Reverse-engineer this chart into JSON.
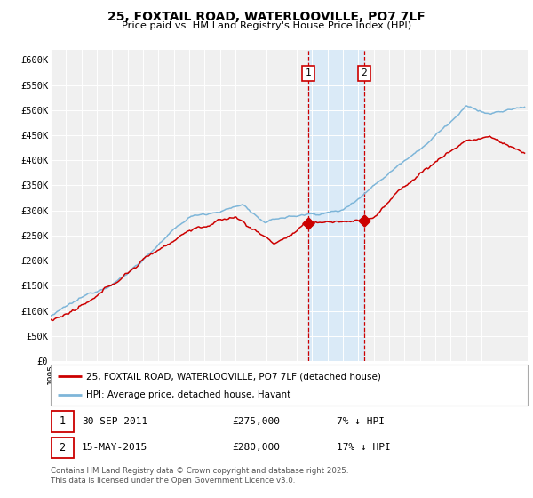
{
  "title": "25, FOXTAIL ROAD, WATERLOOVILLE, PO7 7LF",
  "subtitle": "Price paid vs. HM Land Registry's House Price Index (HPI)",
  "legend_line1": "25, FOXTAIL ROAD, WATERLOOVILLE, PO7 7LF (detached house)",
  "legend_line2": "HPI: Average price, detached house, Havant",
  "annotation1": {
    "label": "1",
    "date_str": "30-SEP-2011",
    "price": "£275,000",
    "hpi_note": "7% ↓ HPI",
    "year": 2011.75
  },
  "annotation2": {
    "label": "2",
    "date_str": "15-MAY-2015",
    "price": "£280,000",
    "hpi_note": "17% ↓ HPI",
    "year": 2015.37
  },
  "point1_value": 275000,
  "point2_value": 280000,
  "hpi_color": "#7eb6d9",
  "price_color": "#cc0000",
  "background_color": "#ffffff",
  "plot_bg_color": "#f0f0f0",
  "shade_color": "#daeaf7",
  "grid_color": "#ffffff",
  "footer": "Contains HM Land Registry data © Crown copyright and database right 2025.\nThis data is licensed under the Open Government Licence v3.0.",
  "ylim": [
    0,
    620000
  ],
  "yticks": [
    0,
    50000,
    100000,
    150000,
    200000,
    250000,
    300000,
    350000,
    400000,
    450000,
    500000,
    550000,
    600000
  ],
  "ytick_labels": [
    "£0",
    "£50K",
    "£100K",
    "£150K",
    "£200K",
    "£250K",
    "£300K",
    "£350K",
    "£400K",
    "£450K",
    "£500K",
    "£550K",
    "£600K"
  ],
  "xmin": 1995,
  "xmax": 2026
}
